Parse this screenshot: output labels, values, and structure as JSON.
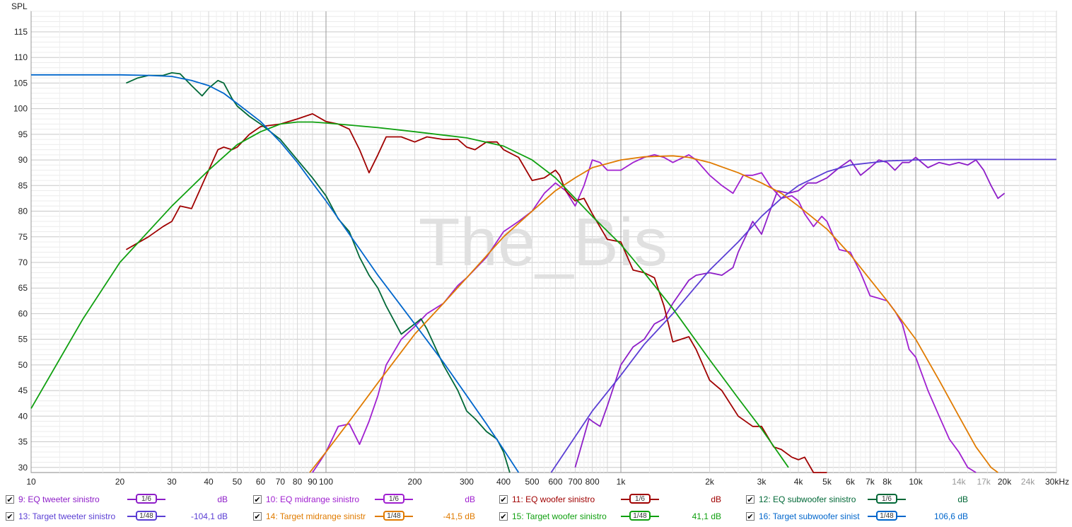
{
  "chart_data": {
    "type": "line",
    "ylabel": "SPL",
    "x_scale": "log",
    "xlim": [
      10,
      30000
    ],
    "ylim": [
      29,
      119
    ],
    "y_ticks": [
      30,
      35,
      40,
      45,
      50,
      55,
      60,
      65,
      70,
      75,
      80,
      85,
      90,
      95,
      100,
      105,
      110,
      115
    ],
    "x_ticks": [
      {
        "value": 10,
        "label": "10"
      },
      {
        "value": 20,
        "label": "20"
      },
      {
        "value": 30,
        "label": "30"
      },
      {
        "value": 40,
        "label": "40"
      },
      {
        "value": 50,
        "label": "50"
      },
      {
        "value": 60,
        "label": "60"
      },
      {
        "value": 70,
        "label": "70"
      },
      {
        "value": 80,
        "label": "80"
      },
      {
        "value": 90,
        "label": "90"
      },
      {
        "value": 100,
        "label": "100"
      },
      {
        "value": 200,
        "label": "200"
      },
      {
        "value": 300,
        "label": "300"
      },
      {
        "value": 400,
        "label": "400"
      },
      {
        "value": 500,
        "label": "500"
      },
      {
        "value": 600,
        "label": "600"
      },
      {
        "value": 700,
        "label": "700"
      },
      {
        "value": 800,
        "label": "800"
      },
      {
        "value": 1000,
        "label": "1k"
      },
      {
        "value": 2000,
        "label": "2k"
      },
      {
        "value": 3000,
        "label": "3k"
      },
      {
        "value": 4000,
        "label": "4k"
      },
      {
        "value": 5000,
        "label": "5k"
      },
      {
        "value": 6000,
        "label": "6k"
      },
      {
        "value": 7000,
        "label": "7k"
      },
      {
        "value": 8000,
        "label": "8k"
      },
      {
        "value": 10000,
        "label": "10k"
      },
      {
        "value": 14000,
        "label": "14k",
        "grey": true
      },
      {
        "value": 17000,
        "label": "17k",
        "grey": true
      },
      {
        "value": 20000,
        "label": "20k"
      },
      {
        "value": 24000,
        "label": "24k",
        "grey": true
      },
      {
        "value": 30000,
        "label": "30kHz"
      }
    ],
    "watermark": "The_Bis",
    "series": [
      {
        "name": "9: EQ tweeter sinistro",
        "color": "#8e1ec8",
        "smoothing": "1/6",
        "value": "dB",
        "x": [
          700,
          750,
          780,
          800,
          850,
          900,
          1000,
          1100,
          1200,
          1300,
          1400,
          1500,
          1700,
          1800,
          2000,
          2200,
          2400,
          2500,
          2800,
          3000,
          3200,
          3400,
          3700,
          4000,
          4300,
          4600,
          5000,
          5500,
          6000,
          6500,
          7000,
          7500,
          8000,
          8500,
          9000,
          9500,
          10000,
          11000,
          12000,
          13000,
          14000,
          15000,
          16000,
          17000,
          18000,
          19000,
          20000
        ],
        "y": [
          30,
          36,
          39.5,
          39,
          38,
          42,
          50,
          53.5,
          55,
          58,
          59,
          62,
          66.5,
          67.5,
          68,
          67.5,
          69,
          72,
          78,
          75.5,
          80,
          84,
          83.5,
          84,
          85.5,
          85.5,
          86.5,
          88.5,
          90,
          87,
          88.5,
          90,
          89.5,
          88,
          89.5,
          89.5,
          90.5,
          88.5,
          89.5,
          89,
          89.5,
          89,
          90,
          88,
          85,
          82.5,
          83.5
        ]
      },
      {
        "name": "10: EQ midrange sinistro",
        "color": "#a020d0",
        "smoothing": "1/6",
        "value": "dB",
        "x": [
          90,
          95,
          100,
          110,
          120,
          130,
          140,
          150,
          160,
          180,
          200,
          220,
          250,
          280,
          300,
          350,
          400,
          450,
          500,
          550,
          600,
          650,
          700,
          750,
          800,
          850,
          900,
          1000,
          1100,
          1200,
          1300,
          1400,
          1500,
          1700,
          1800,
          2000,
          2200,
          2400,
          2600,
          2800,
          3000,
          3200,
          3500,
          3800,
          4000,
          4200,
          4500,
          4800,
          5000,
          5500,
          6000,
          6500,
          7000,
          7500,
          8000,
          8500,
          9000,
          9500,
          10000,
          11000,
          12000,
          13000,
          14000,
          15000,
          16000
        ],
        "y": [
          29,
          31,
          33,
          38,
          38.5,
          34.5,
          39,
          44,
          50,
          55,
          57.5,
          60,
          62,
          65.5,
          67,
          71,
          76,
          78,
          80,
          83.5,
          85.5,
          84,
          81,
          85,
          90,
          89.5,
          88,
          88,
          89.5,
          90.5,
          91,
          90.5,
          89.5,
          91,
          90,
          87,
          85,
          83.5,
          87,
          87,
          87.5,
          85,
          82.5,
          83,
          82,
          79.5,
          77,
          79,
          78,
          72.5,
          72,
          68,
          63.5,
          63,
          62.5,
          60.5,
          58,
          53,
          51.5,
          45,
          40,
          35.5,
          33,
          30,
          28
        ]
      },
      {
        "name": "11: EQ woofer sinistro",
        "color": "#a00000",
        "smoothing": "1/6",
        "value": "dB",
        "x": [
          21,
          25,
          28,
          30,
          32,
          35,
          40,
          43,
          45,
          48,
          50,
          55,
          60,
          70,
          80,
          90,
          100,
          110,
          120,
          130,
          140,
          150,
          160,
          180,
          200,
          220,
          250,
          280,
          300,
          320,
          350,
          380,
          400,
          450,
          500,
          550,
          600,
          620,
          650,
          700,
          750,
          800,
          900,
          1000,
          1100,
          1200,
          1300,
          1400,
          1500,
          1600,
          1700,
          1800,
          2000,
          2200,
          2500,
          2800,
          3000,
          3300,
          3500,
          3800,
          4000,
          4200,
          4500,
          5000
        ],
        "y": [
          72.5,
          75,
          77,
          78,
          81,
          80.5,
          88,
          92,
          92.5,
          92,
          92.5,
          95,
          96.5,
          97,
          98,
          99,
          97.5,
          97,
          96,
          92,
          87.5,
          91,
          94.5,
          94.5,
          93.5,
          94.5,
          94,
          94,
          92.5,
          92,
          93.5,
          93.5,
          92,
          90.5,
          86,
          86.5,
          88,
          87,
          84,
          82,
          82.5,
          79.5,
          74.5,
          74,
          68.5,
          68,
          67,
          61.5,
          54.5,
          55,
          55.5,
          53,
          47,
          45,
          40,
          38,
          38,
          34,
          33.5,
          32,
          31.5,
          32,
          29,
          28
        ]
      },
      {
        "name": "12: EQ subwoofer sinistro",
        "color": "#006837",
        "smoothing": "1/6",
        "value": "dB",
        "x": [
          21,
          23,
          25,
          28,
          30,
          32,
          35,
          38,
          40,
          43,
          45,
          48,
          50,
          55,
          60,
          70,
          80,
          90,
          100,
          110,
          120,
          130,
          140,
          150,
          160,
          180,
          200,
          210,
          220,
          250,
          280,
          300,
          320,
          350,
          380,
          400,
          420
        ],
        "y": [
          105,
          106,
          106.5,
          106.5,
          107,
          106.8,
          104.5,
          102.5,
          104,
          105.5,
          105,
          102,
          100.5,
          98.5,
          97,
          94,
          90,
          86.5,
          83,
          78.5,
          76,
          71,
          67.5,
          65,
          61.5,
          56,
          58,
          59,
          57,
          50,
          45,
          41,
          39.5,
          37,
          35.5,
          33,
          29
        ]
      },
      {
        "name": "13: Target tweeter sinistro",
        "color": "#5a3ed4",
        "smoothing": "1/48",
        "value": "-104,1 dB",
        "x": [
          580,
          700,
          800,
          1000,
          1200,
          1500,
          2000,
          2500,
          3000,
          3500,
          4000,
          5000,
          6000,
          8000,
          10000,
          15000,
          20000,
          30000
        ],
        "y": [
          29,
          36,
          41,
          48,
          54,
          60,
          68.5,
          74,
          79,
          82.5,
          85,
          87.7,
          89,
          89.8,
          90,
          90.1,
          90.1,
          90.1
        ]
      },
      {
        "name": "14: Target midrange sinistr",
        "color": "#e07b00",
        "smoothing": "1/48",
        "value": "-41,5 dB",
        "x": [
          88,
          100,
          120,
          150,
          200,
          250,
          300,
          400,
          500,
          600,
          700,
          800,
          1000,
          1200,
          1500,
          1700,
          2000,
          2500,
          3000,
          3500,
          4000,
          5000,
          6000,
          8000,
          10000,
          12000,
          14000,
          16000,
          18000,
          19000
        ],
        "y": [
          29,
          33,
          39,
          46.5,
          56,
          62,
          67,
          75,
          80,
          84,
          86.5,
          88.5,
          90,
          90.6,
          90.8,
          90.5,
          89.5,
          87.5,
          85.5,
          83.5,
          81,
          76.5,
          71.5,
          62.5,
          55,
          47,
          40,
          34,
          30,
          28
        ]
      },
      {
        "name": "15: Target woofer sinistro",
        "color": "#10a010",
        "smoothing": "1/48",
        "value": "41,1 dB",
        "x": [
          10,
          15,
          20,
          30,
          40,
          50,
          60,
          70,
          80,
          90,
          100,
          150,
          200,
          300,
          400,
          500,
          600,
          700,
          800,
          1000,
          1200,
          1500,
          2000,
          2500,
          3000,
          3500,
          3700
        ],
        "y": [
          41.5,
          59,
          70,
          81,
          88,
          93,
          95.5,
          97,
          97.4,
          97.4,
          97.2,
          96.3,
          95.5,
          94.3,
          92.7,
          90,
          86.5,
          82.5,
          79,
          73.5,
          68,
          61,
          51,
          43.5,
          37.5,
          32,
          30
        ]
      },
      {
        "name": "16: Target subwoofer sinist",
        "color": "#0066cc",
        "smoothing": "1/48",
        "value": "106,6 dB",
        "x": [
          10,
          20,
          25,
          30,
          35,
          40,
          45,
          50,
          60,
          70,
          80,
          90,
          100,
          120,
          150,
          200,
          250,
          300,
          350,
          400,
          450
        ],
        "y": [
          106.6,
          106.6,
          106.5,
          106.3,
          105.5,
          104.5,
          103,
          101,
          97.5,
          93.5,
          89.5,
          85.5,
          82,
          75.5,
          67.5,
          58,
          50.5,
          44,
          38.5,
          33.5,
          29
        ]
      }
    ]
  },
  "legend": [
    {
      "label": "9: EQ tweeter sinistro",
      "color": "#8e1ec8",
      "smoothing": "1/6",
      "value": "dB"
    },
    {
      "label": "10: EQ midrange sinistro",
      "color": "#a020d0",
      "smoothing": "1/6",
      "value": "dB"
    },
    {
      "label": "11: EQ woofer sinistro",
      "color": "#a00000",
      "smoothing": "1/6",
      "value": "dB"
    },
    {
      "label": "12: EQ subwoofer sinistro",
      "color": "#006837",
      "smoothing": "1/6",
      "value": "dB"
    },
    {
      "label": "13: Target tweeter sinistro",
      "color": "#5a3ed4",
      "smoothing": "1/48",
      "value": "-104,1 dB"
    },
    {
      "label": "14: Target midrange sinistr",
      "color": "#e07b00",
      "smoothing": "1/48",
      "value": "-41,5 dB"
    },
    {
      "label": "15: Target woofer sinistro",
      "color": "#10a010",
      "smoothing": "1/48",
      "value": "41,1 dB"
    },
    {
      "label": "16: Target subwoofer sinist",
      "color": "#0066cc",
      "smoothing": "1/48",
      "value": "106,6 dB"
    }
  ]
}
